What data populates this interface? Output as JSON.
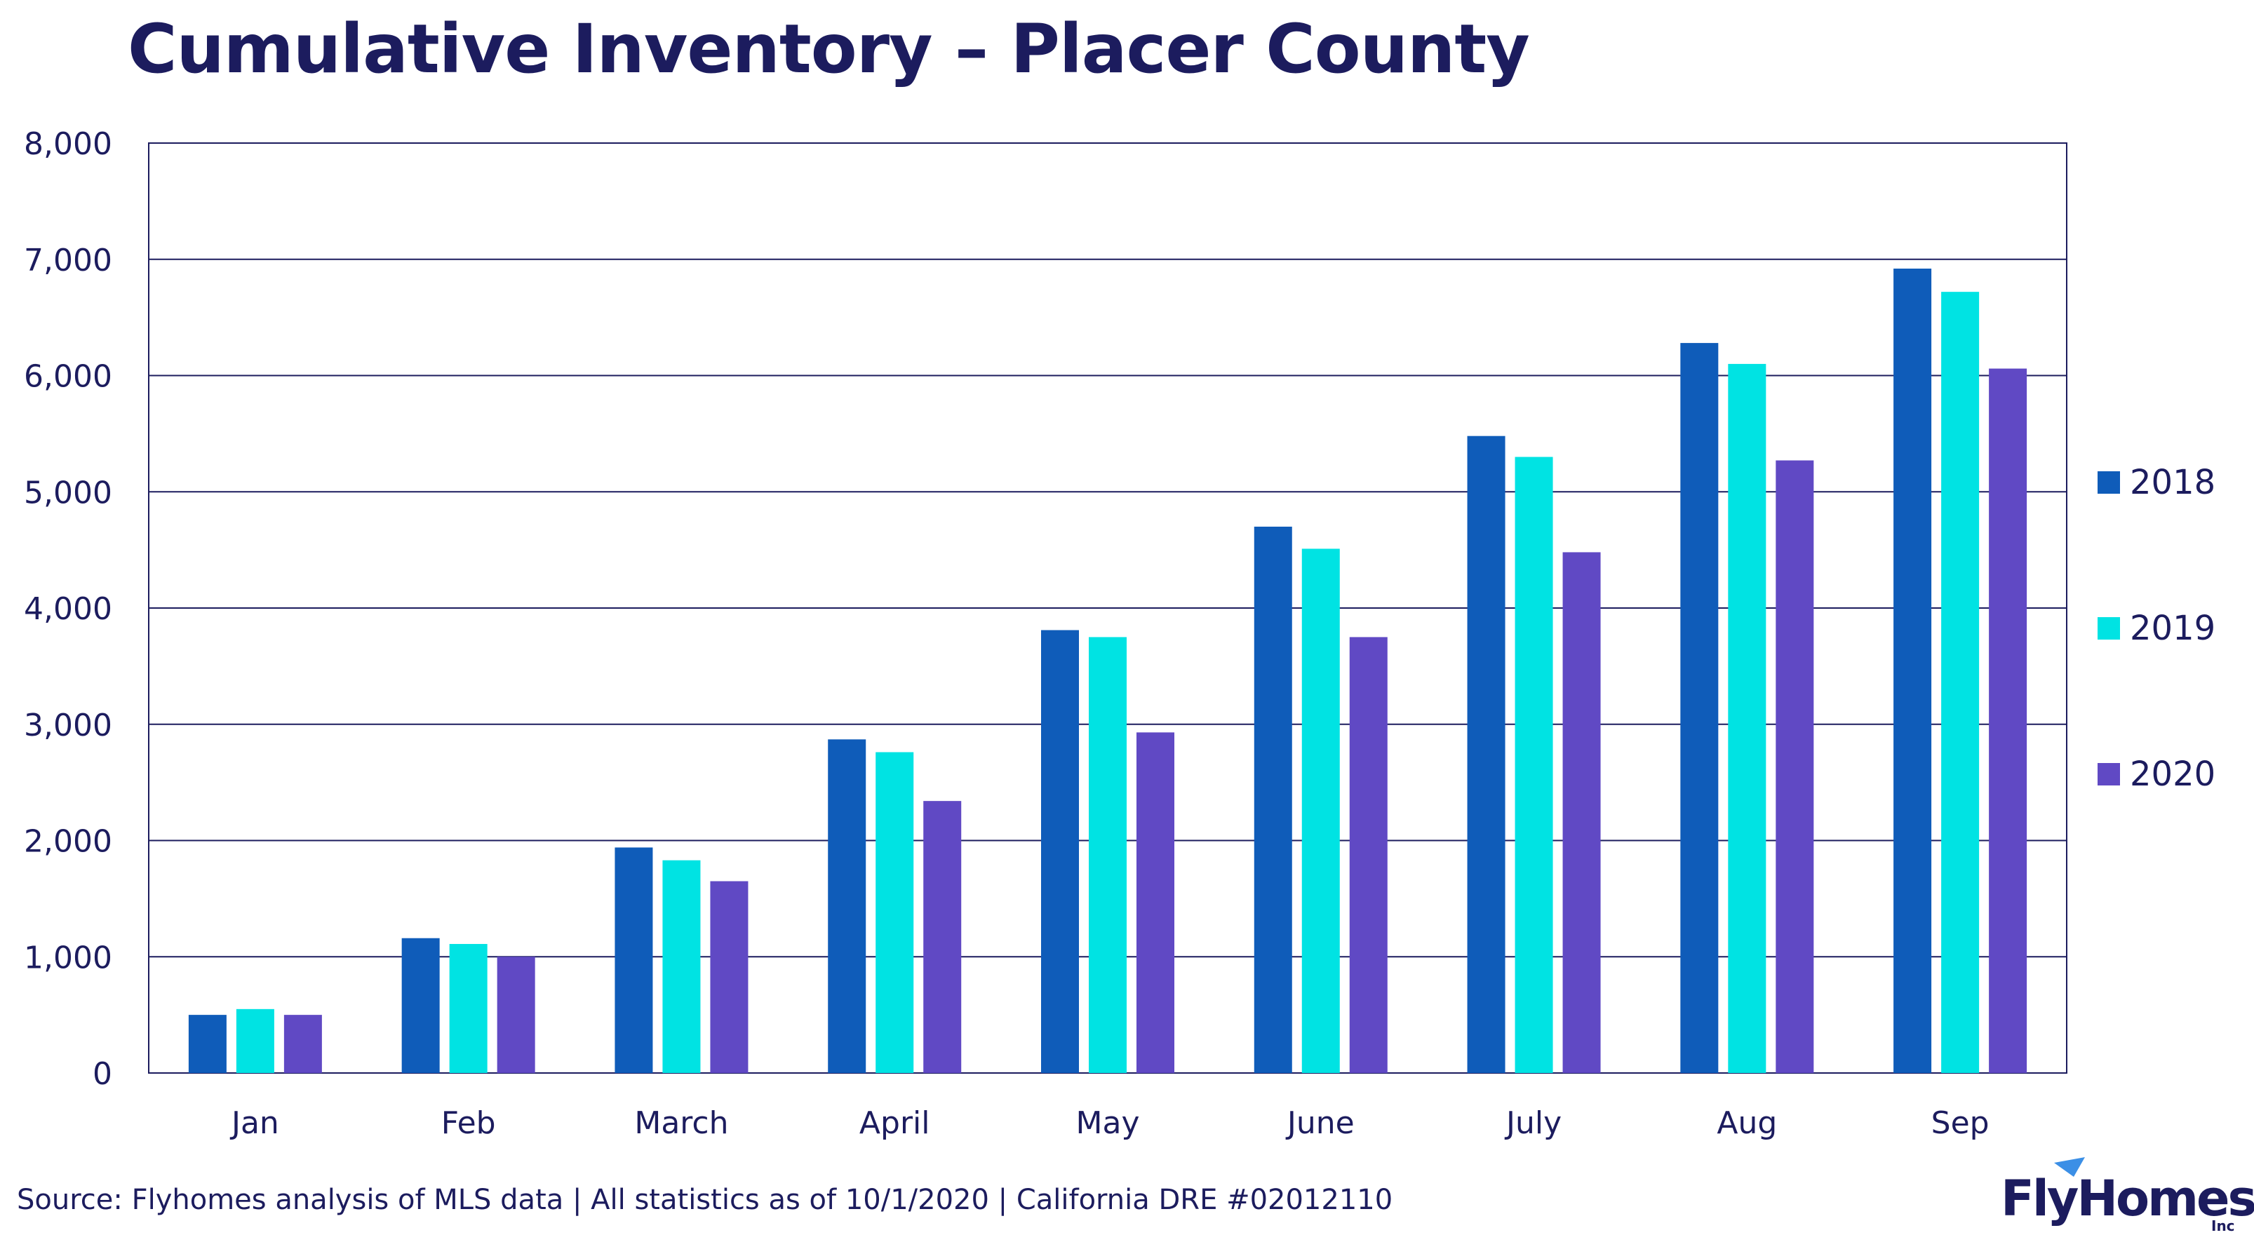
{
  "chart_data": {
    "type": "bar",
    "title": "Cumulative Inventory – Placer County",
    "xlabel": "",
    "ylabel": "",
    "ylim": [
      0,
      8000
    ],
    "yticks": [
      0,
      1000,
      2000,
      3000,
      4000,
      5000,
      6000,
      7000,
      8000
    ],
    "ytick_labels": [
      "0",
      "1,000",
      "2,000",
      "3,000",
      "4,000",
      "5,000",
      "6,000",
      "7,000",
      "8,000"
    ],
    "categories": [
      "Jan",
      "Feb",
      "March",
      "April",
      "May",
      "June",
      "July",
      "Aug",
      "Sep"
    ],
    "series": [
      {
        "name": "2018",
        "color": "#0f5cb9",
        "values": [
          500,
          1160,
          1940,
          2870,
          3810,
          4700,
          5480,
          6280,
          6920
        ]
      },
      {
        "name": "2019",
        "color": "#00e3e3",
        "values": [
          550,
          1110,
          1830,
          2760,
          3750,
          4510,
          5300,
          6100,
          6720
        ]
      },
      {
        "name": "2020",
        "color": "#6049c4",
        "values": [
          500,
          1000,
          1650,
          2340,
          2930,
          3750,
          4480,
          5270,
          6060
        ]
      }
    ],
    "grid": true,
    "legend_position": "right"
  },
  "footer": {
    "source": "Source: Flyhomes analysis of MLS data | All statistics as of 10/1/2020 | California DRE #02012110"
  },
  "logo": {
    "name": "FlyHomes",
    "sub": "Inc"
  }
}
